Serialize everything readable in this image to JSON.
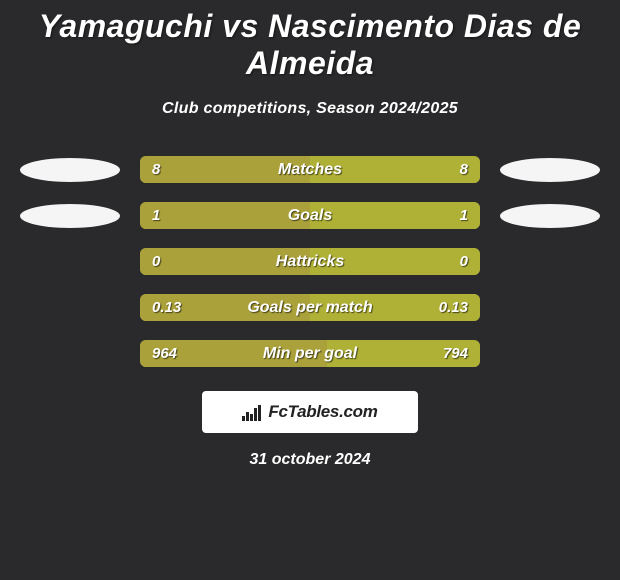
{
  "title": "Yamaguchi vs Nascimento Dias de Almeida",
  "subtitle": "Club competitions, Season 2024/2025",
  "colors": {
    "background": "#2a2a2c",
    "bar_left": "#aba13a",
    "bar_right": "#afb036",
    "ellipse": "#f5f5f5",
    "text": "#ffffff",
    "logo_bg": "#ffffff",
    "logo_text": "#222222"
  },
  "rows": [
    {
      "label": "Matches",
      "left": "8",
      "right": "8",
      "left_pct": 50,
      "right_pct": 50,
      "show_ellipses": true
    },
    {
      "label": "Goals",
      "left": "1",
      "right": "1",
      "left_pct": 50,
      "right_pct": 50,
      "show_ellipses": true
    },
    {
      "label": "Hattricks",
      "left": "0",
      "right": "0",
      "left_pct": 50,
      "right_pct": 50,
      "show_ellipses": false
    },
    {
      "label": "Goals per match",
      "left": "0.13",
      "right": "0.13",
      "left_pct": 50,
      "right_pct": 50,
      "show_ellipses": false
    },
    {
      "label": "Min per goal",
      "left": "964",
      "right": "794",
      "left_pct": 55,
      "right_pct": 45,
      "show_ellipses": false
    }
  ],
  "logo_text": "FcTables.com",
  "date": "31 october 2024"
}
